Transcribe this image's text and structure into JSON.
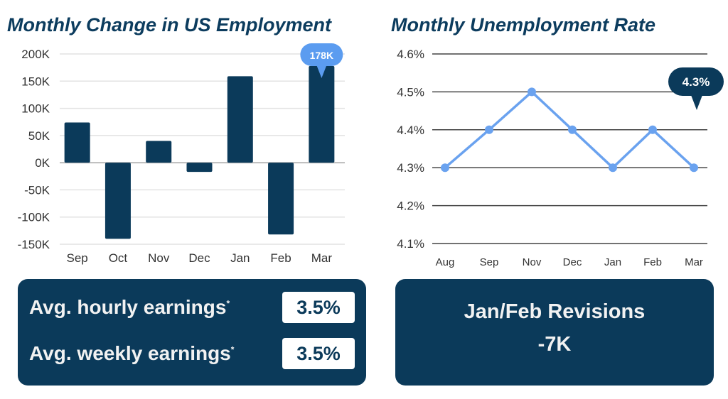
{
  "chart_data": [
    {
      "type": "bar",
      "title": "Monthly Change in US Employment",
      "categories": [
        "Sep",
        "Oct",
        "Nov",
        "Dec",
        "Jan",
        "Feb",
        "Mar"
      ],
      "values": [
        74000,
        -140000,
        40000,
        -17000,
        159000,
        -132000,
        178000
      ],
      "ylim": [
        -150000,
        200000
      ],
      "yticks": [
        200000,
        150000,
        100000,
        50000,
        0,
        -50000,
        -100000,
        -150000
      ],
      "ytick_labels": [
        "200K",
        "150K",
        "100K",
        "50K",
        "0K",
        "-50K",
        "-100K",
        "-150K"
      ],
      "annotation": {
        "category": "Mar",
        "label": "178K"
      },
      "grid": true,
      "color": "#0b3a5a",
      "annotation_color": "#5b9cf0"
    },
    {
      "type": "line",
      "title": "Monthly Unemployment Rate",
      "categories": [
        "Aug",
        "Sep",
        "Nov",
        "Dec",
        "Jan",
        "Feb",
        "Mar"
      ],
      "values": [
        4.3,
        4.4,
        4.5,
        4.4,
        4.3,
        4.4,
        4.3
      ],
      "ylim": [
        4.1,
        4.6
      ],
      "yticks": [
        4.6,
        4.5,
        4.4,
        4.3,
        4.2,
        4.1
      ],
      "ytick_labels": [
        "4.6%",
        "4.5%",
        "4.4%",
        "4.3%",
        "4.2%",
        "4.1%"
      ],
      "annotation": {
        "category": "Mar",
        "label": "4.3%"
      },
      "grid": true,
      "color": "#6aa2ef",
      "annotation_color": "#0b3a5a"
    }
  ],
  "earnings": {
    "hourly_label": "Avg. hourly earnings",
    "hourly_value": "3.5%",
    "weekly_label": "Avg. weekly earnings",
    "weekly_value": "3.5%",
    "footnote_mark": "*"
  },
  "revisions": {
    "label": "Jan/Feb Revisions",
    "value": "-7K"
  }
}
